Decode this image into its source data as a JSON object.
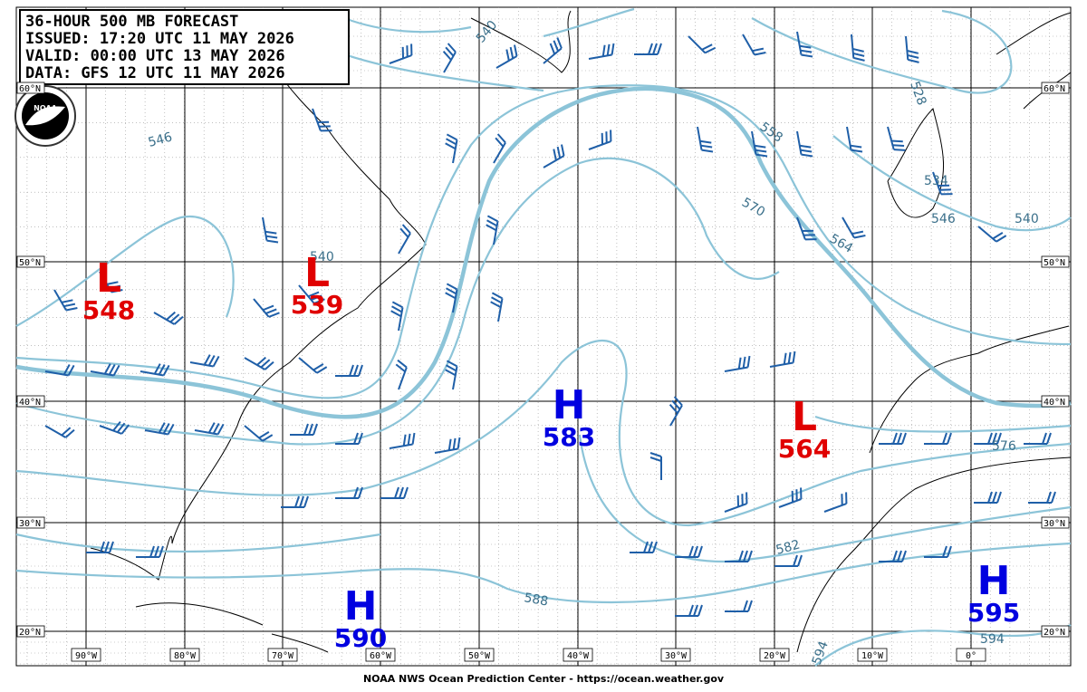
{
  "header": {
    "lines": [
      "36-HOUR 500 MB FORECAST",
      "ISSUED: 17:20 UTC 11 MAY 2026",
      "VALID:  00:00 UTC 13 MAY 2026",
      "DATA:   GFS 12 UTC 11 MAY 2026"
    ]
  },
  "logo": "NOAA",
  "lat_labels": [
    "60°N",
    "50°N",
    "40°N",
    "30°N",
    "20°N"
  ],
  "lon_labels": [
    "90°W",
    "80°W",
    "70°W",
    "60°W",
    "50°W",
    "40°W",
    "30°W",
    "20°W",
    "10°W",
    "0°"
  ],
  "centers": [
    {
      "type": "L",
      "value": 548
    },
    {
      "type": "L",
      "value": 539
    },
    {
      "type": "H",
      "value": 583
    },
    {
      "type": "L",
      "value": 564
    },
    {
      "type": "H",
      "value": 590
    },
    {
      "type": "H",
      "value": 595
    }
  ],
  "contour_labels": [
    546,
    540,
    540,
    558,
    570,
    564,
    528,
    534,
    546,
    540,
    576,
    582,
    588,
    594,
    594
  ],
  "footer": "NOAA NWS Ocean Prediction Center - https://ocean.weather.gov"
}
